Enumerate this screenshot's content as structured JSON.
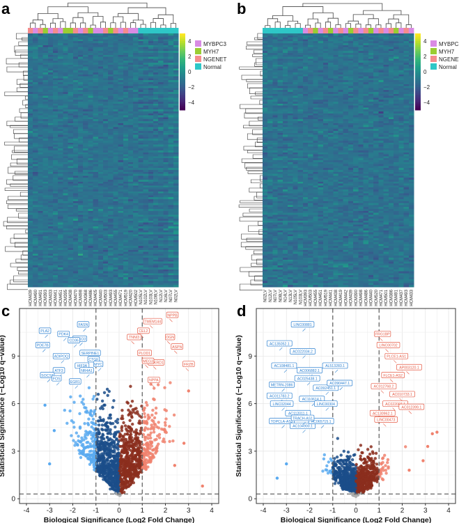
{
  "panels": {
    "a": "a",
    "b": "b",
    "c": "c",
    "d": "d"
  },
  "colors": {
    "mybpc3": "#d98be3",
    "myh7": "#9acd32",
    "ngenet": "#f48c8c",
    "normal": "#2ec7c7",
    "up_strong": "#f0826e",
    "up_weak": "#8b2e1d",
    "down_strong": "#5aaaf0",
    "down_weak": "#1b4e8a",
    "ns": "#aaaaaa",
    "label_up": "#e55a44",
    "label_down": "#2a7fd0"
  },
  "chart_data": [
    {
      "panel": "a",
      "type": "heatmap",
      "title": "",
      "legend_groups": [
        "MYBPC3",
        "MYH7",
        "NGENET",
        "Normal"
      ],
      "colorbar_ticks": [
        "4",
        "2",
        "0",
        "−2",
        "−4"
      ],
      "colorbar_range": [
        -5,
        5
      ],
      "sample_groups": [
        "NGENET",
        "MYBPC3",
        "NGENET",
        "MYH7",
        "MYBPC3",
        "NGENET",
        "MYBPC3",
        "MYH7",
        "MYH7",
        "NGENET",
        "MYBPC3",
        "NGENET",
        "MYH7",
        "MYBPC3",
        "MYBPC3",
        "NGENET",
        "MYH7",
        "NGENET",
        "MYBPC3",
        "NGENET",
        "MYBPC3",
        "MYBPC3",
        "Normal",
        "Normal",
        "Normal",
        "Normal",
        "Normal",
        "Normal",
        "Normal",
        "Normal"
      ],
      "sample_labels": [
        "HCM439",
        "HCM490",
        "HCM491",
        "HCM393",
        "HCM433",
        "HCM441",
        "HCM451",
        "HCM395",
        "HCM438",
        "HCM470",
        "HCM498",
        "HCM368",
        "HCM486",
        "HCM405",
        "HCM440",
        "HCM503",
        "HCM493",
        "HCM455",
        "HCM471",
        "HCM519",
        "HCM420",
        "HCM502",
        "N105LV",
        "N102LV",
        "N103LV",
        "N108LV",
        "N12LV",
        "N16LV",
        "N07LV",
        "N02LV"
      ]
    },
    {
      "panel": "b",
      "type": "heatmap",
      "title": "",
      "legend_groups": [
        "MYBPC3",
        "MYH7",
        "NGENET",
        "Normal"
      ],
      "colorbar_ticks": [
        "4",
        "2",
        "0",
        "−2",
        "−4"
      ],
      "colorbar_range": [
        -5,
        5
      ],
      "sample_groups": [
        "Normal",
        "Normal",
        "Normal",
        "Normal",
        "Normal",
        "Normal",
        "Normal",
        "Normal",
        "MYBPC3",
        "NGENET",
        "MYH7",
        "MYBPC3",
        "NGENET",
        "MYH7",
        "MYBPC3",
        "NGENET",
        "MYBPC3",
        "MYH7",
        "NGENET",
        "MYBPC3",
        "NGENET",
        "MYH7",
        "MYBPC3",
        "NGENET",
        "MYBPC3",
        "NGENET",
        "MYH7",
        "MYBPC3",
        "NGENET",
        "MYBPC3"
      ],
      "sample_labels": [
        "N02LV",
        "N12LV",
        "N07LV",
        "N08LV",
        "N14LV",
        "N13LV",
        "N105LV",
        "N103LV",
        "HCM393",
        "HCM503",
        "HCM455",
        "HCM451",
        "HCM519",
        "HCM441",
        "HCM438",
        "HCM419",
        "HCM442",
        "HCM439",
        "HCM390",
        "HCM498",
        "HCM486",
        "HCM440",
        "HCM520",
        "HCM471",
        "HCM501",
        "HCM386",
        "HCM491",
        "HCM437",
        "HCM493",
        "HCM433"
      ]
    },
    {
      "panel": "c",
      "type": "scatter",
      "title": "",
      "xlabel": "Biological Significance (Log2 Fold Change)",
      "ylabel": "Statistical Significance (−Log10 q−value)",
      "xlim": [
        -4.3,
        4.3
      ],
      "ylim": [
        -0.3,
        12.0
      ],
      "xticks": [
        "-4",
        "-3",
        "-2",
        "-1",
        "0",
        "1",
        "2",
        "3",
        "4"
      ],
      "yticks": [
        "0",
        "3",
        "6",
        "9"
      ],
      "vlines": [
        -1,
        1
      ],
      "hline": 0.3,
      "grid": true,
      "labels_up": [
        {
          "text": "TMEM144",
          "x": 1.45,
          "y": 11.2
        },
        {
          "text": "CEL2",
          "x": 1.05,
          "y": 10.6
        },
        {
          "text": "TNNI3",
          "x": 0.65,
          "y": 10.2
        },
        {
          "text": "PLOD1",
          "x": 1.1,
          "y": 9.2
        },
        {
          "text": "ANKRD1",
          "x": 1.6,
          "y": 8.6
        },
        {
          "text": "MEG3",
          "x": 1.25,
          "y": 8.7
        },
        {
          "text": "NPPA",
          "x": 1.5,
          "y": 7.5
        },
        {
          "text": "NPPB",
          "x": 2.3,
          "y": 11.6
        },
        {
          "text": "OGN",
          "x": 2.2,
          "y": 10.2
        },
        {
          "text": "ASPN",
          "x": 2.5,
          "y": 9.6
        },
        {
          "text": "FRZB",
          "x": 3.0,
          "y": 8.5
        }
      ],
      "labels_down": [
        {
          "text": "PLA2",
          "x": -3.2,
          "y": 10.6
        },
        {
          "text": "PDK4",
          "x": -2.4,
          "y": 10.4
        },
        {
          "text": "FOXO3",
          "x": -1.7,
          "y": 10.1
        },
        {
          "text": "FASN",
          "x": -1.55,
          "y": 11.0
        },
        {
          "text": "CD36",
          "x": -1.95,
          "y": 10.0
        },
        {
          "text": "PDE7B",
          "x": -3.3,
          "y": 9.7
        },
        {
          "text": "ADIPOQ",
          "x": -2.5,
          "y": 9.0
        },
        {
          "text": "SERPINE1",
          "x": -1.25,
          "y": 9.2
        },
        {
          "text": "CTGF",
          "x": -1.1,
          "y": 8.8
        },
        {
          "text": "MYC",
          "x": -0.9,
          "y": 8.5
        },
        {
          "text": "HIF3A",
          "x": -1.6,
          "y": 8.4
        },
        {
          "text": "NR4A1",
          "x": -1.4,
          "y": 8.1
        },
        {
          "text": "ATF3",
          "x": -2.6,
          "y": 8.1
        },
        {
          "text": "SOCS3",
          "x": -3.1,
          "y": 7.8
        },
        {
          "text": "FOS",
          "x": -2.7,
          "y": 7.6
        },
        {
          "text": "EGR1",
          "x": -1.9,
          "y": 7.4
        }
      ]
    },
    {
      "panel": "d",
      "type": "scatter",
      "title": "",
      "xlabel": "Biological Significance (Log2 Fold Change)",
      "ylabel": "Statistical Significance (−Log10 q−value)",
      "xlim": [
        -4.3,
        4.3
      ],
      "ylim": [
        -0.3,
        12.0
      ],
      "xticks": [
        "-4",
        "-3",
        "-2",
        "-1",
        "0",
        "1",
        "2",
        "3",
        "4"
      ],
      "yticks": [
        "0",
        "3",
        "6",
        "9"
      ],
      "vlines": [
        -1,
        1
      ],
      "hline": 0.3,
      "grid": true,
      "labels_up": [
        {
          "text": "FRG1BP",
          "x": 1.15,
          "y": 10.4
        },
        {
          "text": "LINC00702",
          "x": 1.4,
          "y": 9.7
        },
        {
          "text": "PLCE1-AS1",
          "x": 1.75,
          "y": 9.0
        },
        {
          "text": "AP003120.1",
          "x": 2.3,
          "y": 8.3
        },
        {
          "text": "FLCE1-AS2",
          "x": 1.6,
          "y": 7.8
        },
        {
          "text": "AC012768.2",
          "x": 1.2,
          "y": 7.1
        },
        {
          "text": "AC010733.1",
          "x": 2.0,
          "y": 6.6
        },
        {
          "text": "AC022007.1",
          "x": 1.7,
          "y": 6.0
        },
        {
          "text": "AC012399.1",
          "x": 2.4,
          "y": 5.8
        },
        {
          "text": "AC130962.1",
          "x": 1.15,
          "y": 5.4
        },
        {
          "text": "LINC00473",
          "x": 1.3,
          "y": 5.0
        }
      ],
      "labels_down": [
        {
          "text": "LINC00881",
          "x": -2.3,
          "y": 11.0
        },
        {
          "text": "AC135052.1",
          "x": -3.3,
          "y": 9.8
        },
        {
          "text": "AC022034.2",
          "x": -2.3,
          "y": 9.3
        },
        {
          "text": "AC108481.1",
          "x": -3.1,
          "y": 8.4
        },
        {
          "text": "AC006882.1",
          "x": -2.0,
          "y": 8.1
        },
        {
          "text": "AL513283.1",
          "x": -0.9,
          "y": 8.4
        },
        {
          "text": "METRN-2086",
          "x": -3.2,
          "y": 7.2
        },
        {
          "text": "AC025438.1",
          "x": -2.1,
          "y": 7.6
        },
        {
          "text": "AC092451.1",
          "x": -1.3,
          "y": 7.0
        },
        {
          "text": "AC090447.1",
          "x": -0.7,
          "y": 7.3
        },
        {
          "text": "AC011783.2",
          "x": -3.3,
          "y": 6.5
        },
        {
          "text": "LINC02044",
          "x": -3.2,
          "y": 6.0
        },
        {
          "text": "AC110614.1",
          "x": -1.9,
          "y": 6.3
        },
        {
          "text": "LINC00304",
          "x": -1.3,
          "y": 6.0
        },
        {
          "text": "AC112011.1",
          "x": -2.5,
          "y": 5.4
        },
        {
          "text": "TOPCLA-AS2",
          "x": -3.2,
          "y": 4.9
        },
        {
          "text": "AC104900.1",
          "x": -2.3,
          "y": 4.6
        },
        {
          "text": "AC065715.1",
          "x": -1.5,
          "y": 4.9
        },
        {
          "text": "TRACH-AS1",
          "x": -2.3,
          "y": 5.1
        }
      ]
    }
  ]
}
